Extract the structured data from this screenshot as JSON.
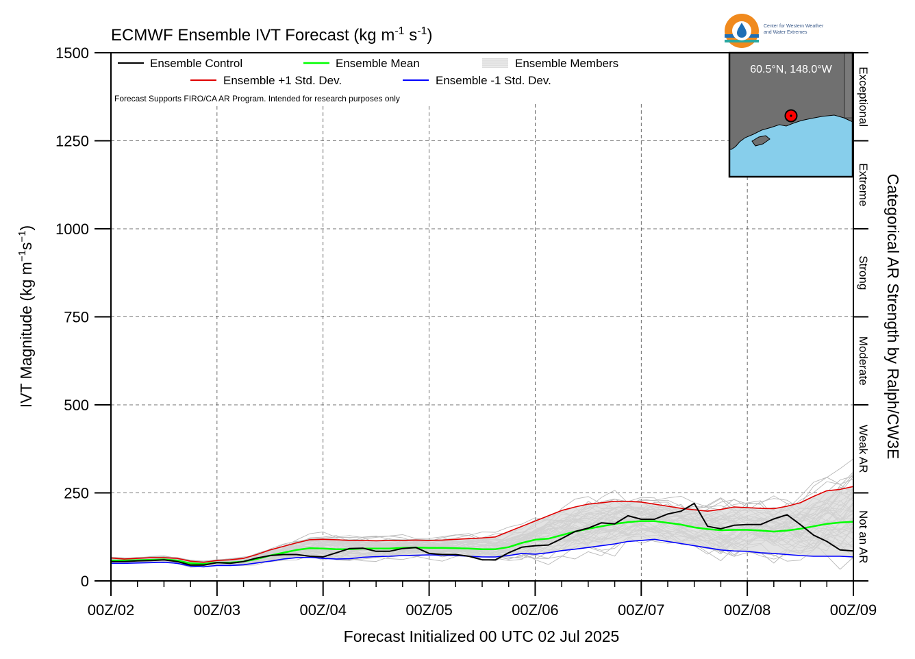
{
  "chart_data": {
    "type": "line",
    "title": "ECMWF Ensemble IVT Forecast (kg m⁻¹ s⁻¹)",
    "title_main": "ECMWF Ensemble IVT Forecast (kg m",
    "title_units": [
      "-1",
      "-1"
    ],
    "xlabel": "Forecast Initialized 00 UTC 02 Jul 2025",
    "ylabel": "IVT Magnitude (kg m⁻¹s⁻¹)",
    "ylabel_main": "IVT Magnitude (kg m",
    "ylabel_right": "Categorical AR Strength by Ralph/CW3E",
    "ylim": [
      0,
      1500
    ],
    "yticks": [
      0,
      250,
      500,
      750,
      1000,
      1250,
      1500
    ],
    "xlim_hours": [
      0,
      168
    ],
    "xtick_labels": [
      "00Z/02",
      "00Z/03",
      "00Z/04",
      "00Z/05",
      "00Z/06",
      "00Z/07",
      "00Z/08",
      "00Z/09"
    ],
    "x_hours": [
      0,
      3,
      6,
      9,
      12,
      15,
      18,
      21,
      24,
      27,
      30,
      33,
      36,
      39,
      42,
      45,
      48,
      51,
      54,
      57,
      60,
      63,
      66,
      69,
      72,
      75,
      78,
      81,
      84,
      87,
      90,
      93,
      96,
      99,
      102,
      105,
      108,
      111,
      114,
      117,
      120,
      123,
      126,
      129,
      132,
      135,
      138,
      141,
      144,
      147,
      150,
      153,
      156,
      159,
      162,
      165,
      168
    ],
    "grid": true,
    "categories_right": [
      {
        "label": "Not an AR",
        "range": [
          0,
          250
        ]
      },
      {
        "label": "Weak AR",
        "range": [
          250,
          500
        ]
      },
      {
        "label": "Moderate",
        "range": [
          500,
          750
        ]
      },
      {
        "label": "Strong",
        "range": [
          750,
          1000
        ]
      },
      {
        "label": "Extreme",
        "range": [
          1000,
          1250
        ]
      },
      {
        "label": "Exceptional",
        "range": [
          1250,
          1500
        ]
      }
    ],
    "legend": {
      "control": "Ensemble Control",
      "mean": "Ensemble Mean",
      "members": "Ensemble Members",
      "plus_std": "Ensemble +1 Std. Dev.",
      "minus_std": "Ensemble -1 Std. Dev."
    },
    "note": "Forecast Supports FIRO/CA AR Program. Intended for research purposes only",
    "series": [
      {
        "name": "Ensemble Control",
        "color": "#000000",
        "values": [
          55,
          55,
          57,
          58,
          60,
          55,
          45,
          45,
          52,
          50,
          55,
          65,
          72,
          75,
          75,
          70,
          68,
          80,
          92,
          93,
          84,
          84,
          92,
          95,
          78,
          75,
          75,
          70,
          60,
          60,
          80,
          96,
          100,
          102,
          120,
          140,
          150,
          165,
          162,
          185,
          175,
          175,
          190,
          198,
          220,
          155,
          148,
          158,
          160,
          160,
          176,
          188,
          160,
          130,
          112,
          88,
          85
        ]
      },
      {
        "name": "Ensemble Mean",
        "color": "#00ff00",
        "values": [
          58,
          58,
          59,
          60,
          61,
          58,
          50,
          48,
          52,
          52,
          55,
          62,
          72,
          80,
          88,
          93,
          92,
          90,
          90,
          92,
          92,
          92,
          94,
          95,
          94,
          94,
          93,
          92,
          90,
          90,
          96,
          108,
          117,
          120,
          130,
          140,
          148,
          155,
          162,
          167,
          170,
          170,
          165,
          160,
          152,
          147,
          144,
          145,
          145,
          143,
          140,
          143,
          148,
          155,
          162,
          166,
          168
        ]
      },
      {
        "name": "Ensemble +1 Std. Dev.",
        "color": "#e00000",
        "values": [
          65,
          62,
          64,
          66,
          66,
          64,
          56,
          53,
          58,
          60,
          64,
          75,
          88,
          98,
          108,
          117,
          118,
          117,
          115,
          115,
          114,
          115,
          115,
          116,
          115,
          116,
          118,
          120,
          122,
          125,
          140,
          155,
          170,
          185,
          200,
          210,
          218,
          222,
          226,
          226,
          224,
          218,
          212,
          206,
          202,
          198,
          203,
          210,
          208,
          206,
          205,
          212,
          222,
          240,
          256,
          260,
          268
        ]
      },
      {
        "name": "Ensemble -1 Std. Dev.",
        "color": "#0000ff",
        "values": [
          50,
          50,
          51,
          52,
          53,
          50,
          42,
          40,
          44,
          44,
          46,
          51,
          56,
          62,
          66,
          67,
          64,
          62,
          63,
          67,
          69,
          70,
          72,
          73,
          74,
          73,
          72,
          70,
          68,
          68,
          72,
          78,
          76,
          80,
          86,
          90,
          95,
          100,
          105,
          112,
          115,
          118,
          112,
          106,
          100,
          94,
          88,
          85,
          84,
          80,
          78,
          75,
          72,
          70,
          70,
          70,
          68
        ]
      }
    ],
    "members_color": "#b8b8b8",
    "spread_color": "#d9d9d9"
  },
  "inset": {
    "location_label": "60.5°N, 148.0°W",
    "land_color": "#707070",
    "ocean_color": "#87ceeb",
    "marker_color": "#ff0000"
  },
  "logo": {
    "line1": "Center for Western Weather",
    "line2": "and Water Extremes",
    "colors": [
      "#f08a1e",
      "#1f6fb5",
      "#2aa7a0"
    ]
  }
}
